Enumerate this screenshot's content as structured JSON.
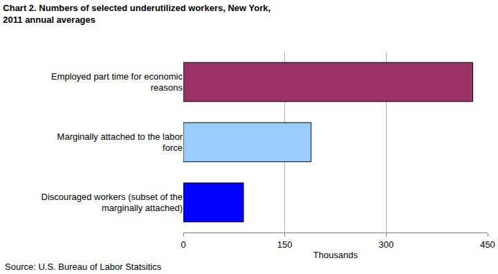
{
  "chart_data": {
    "type": "bar",
    "orientation": "horizontal",
    "title": "Chart 2. Numbers of selected underutilized workers, New York, 2011 annual averages",
    "xlabel": "Thousands",
    "categories": [
      "Employed part time for economic reasons",
      "Marginally attached to the labor force",
      "Discouraged workers (subset of the marginally attached)"
    ],
    "values": [
      428,
      189,
      89
    ],
    "colors": [
      "#993366",
      "#99ccff",
      "#0000ff"
    ],
    "xlim": [
      0,
      450
    ],
    "xticks": [
      0,
      150,
      300,
      450
    ],
    "grid": true,
    "annotations": [
      "Source: U.S. Bureau of Labor Statsitics"
    ]
  }
}
